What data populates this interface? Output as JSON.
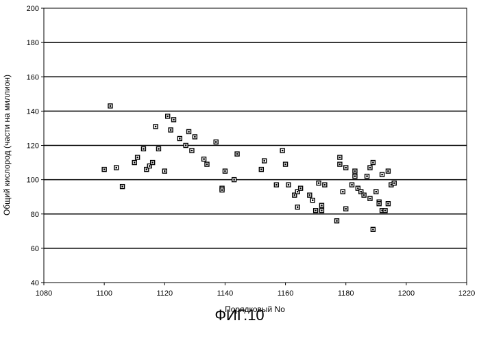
{
  "chart_data": {
    "type": "scatter",
    "xlabel": "Порядковый No",
    "ylabel": "Общий кислород (части на миллион)",
    "xlim": [
      1080,
      1220
    ],
    "ylim": [
      40,
      200
    ],
    "xticks": [
      "1080",
      "1100",
      "1120",
      "1140",
      "1160",
      "1180",
      "1200",
      "1220"
    ],
    "yticks": [
      "40",
      "60",
      "80",
      "100",
      "120",
      "140",
      "160",
      "180",
      "200"
    ],
    "grid": "horizontal",
    "legend": "none",
    "marker_color": "#000000",
    "points": [
      [
        1100,
        106
      ],
      [
        1102,
        143
      ],
      [
        1104,
        107
      ],
      [
        1106,
        96
      ],
      [
        1110,
        110
      ],
      [
        1111,
        113
      ],
      [
        1113,
        118
      ],
      [
        1114,
        106
      ],
      [
        1115,
        108
      ],
      [
        1116,
        110
      ],
      [
        1117,
        131
      ],
      [
        1118,
        118
      ],
      [
        1120,
        105
      ],
      [
        1121,
        137
      ],
      [
        1122,
        129
      ],
      [
        1123,
        135
      ],
      [
        1125,
        124
      ],
      [
        1127,
        120
      ],
      [
        1128,
        128
      ],
      [
        1129,
        117
      ],
      [
        1130,
        125
      ],
      [
        1133,
        112
      ],
      [
        1134,
        109
      ],
      [
        1137,
        122
      ],
      [
        1139,
        95
      ],
      [
        1139,
        94
      ],
      [
        1140,
        105
      ],
      [
        1143,
        100
      ],
      [
        1144,
        115
      ],
      [
        1152,
        106
      ],
      [
        1153,
        111
      ],
      [
        1157,
        97
      ],
      [
        1159,
        117
      ],
      [
        1160,
        109
      ],
      [
        1161,
        97
      ],
      [
        1163,
        91
      ],
      [
        1164,
        84
      ],
      [
        1164,
        93
      ],
      [
        1165,
        95
      ],
      [
        1168,
        91
      ],
      [
        1169,
        88
      ],
      [
        1170,
        82
      ],
      [
        1171,
        98
      ],
      [
        1172,
        82
      ],
      [
        1172,
        85
      ],
      [
        1173,
        97
      ],
      [
        1177,
        76
      ],
      [
        1178,
        113
      ],
      [
        1178,
        109
      ],
      [
        1179,
        93
      ],
      [
        1180,
        83
      ],
      [
        1180,
        107
      ],
      [
        1182,
        97
      ],
      [
        1183,
        105
      ],
      [
        1183,
        102
      ],
      [
        1184,
        95
      ],
      [
        1185,
        93
      ],
      [
        1186,
        91
      ],
      [
        1187,
        102
      ],
      [
        1188,
        89
      ],
      [
        1188,
        107
      ],
      [
        1189,
        110
      ],
      [
        1189,
        71
      ],
      [
        1190,
        93
      ],
      [
        1191,
        87
      ],
      [
        1191,
        86
      ],
      [
        1192,
        82
      ],
      [
        1192,
        103
      ],
      [
        1193,
        82
      ],
      [
        1194,
        105
      ],
      [
        1194,
        86
      ],
      [
        1195,
        97
      ],
      [
        1196,
        98
      ]
    ]
  },
  "caption": "ФИГ.10"
}
